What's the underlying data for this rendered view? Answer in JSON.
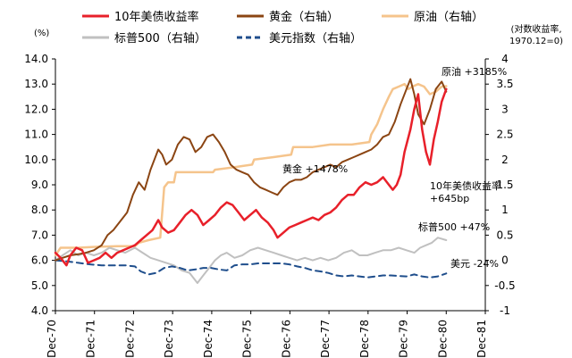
{
  "chart_data": {
    "type": "line",
    "x_range": [
      "1970-12",
      "1981-12"
    ],
    "x_ticks": [
      "Dec-70",
      "Dec-71",
      "Dec-72",
      "Dec-73",
      "Dec-74",
      "Dec-75",
      "Dec-76",
      "Dec-77",
      "Dec-78",
      "Dec-79",
      "Dec-80",
      "Dec-81"
    ],
    "y_left": {
      "unit": "(%)",
      "range": [
        4.0,
        14.0
      ],
      "ticks": [
        "4.0",
        "5.0",
        "6.0",
        "7.0",
        "8.0",
        "9.0",
        "10.0",
        "11.0",
        "12.0",
        "13.0",
        "14.0"
      ]
    },
    "y_right": {
      "unit_line1": "(对数收益率,",
      "unit_line2": "1970.12=0)",
      "range": [
        -1,
        4
      ],
      "ticks": [
        "-1",
        "-0.5",
        "0",
        "0.5",
        "1",
        "1.5",
        "2",
        "2.5",
        "3",
        "3.5",
        "4"
      ]
    },
    "legend": {
      "position": "top",
      "items": [
        {
          "label": "10年美债收益率",
          "color": "#e8202a",
          "style": "solid",
          "width": 2.5
        },
        {
          "label": "黄金（右轴）",
          "color": "#8b4513",
          "style": "solid",
          "width": 2
        },
        {
          "label": "原油（右轴）",
          "color": "#f5c48c",
          "style": "solid",
          "width": 2.5
        },
        {
          "label": "标普500（右轴）",
          "color": "#c0c0c0",
          "style": "solid",
          "width": 2
        },
        {
          "label": "美元指数（右轴）",
          "color": "#1f4e8c",
          "style": "dashed",
          "width": 2
        }
      ]
    },
    "annotations": [
      {
        "text": "原油 +3185%",
        "series": "原油（右轴）"
      },
      {
        "text": "黄金 +1478%",
        "series": "黄金（右轴）"
      },
      {
        "text": "10年美债收益率",
        "series": "10年美债收益率"
      },
      {
        "text": "+645bp",
        "series": "10年美债收益率"
      },
      {
        "text": "标普500 +47%",
        "series": "标普500（右轴）"
      },
      {
        "text": "美元 -24%",
        "series": "美元指数（右轴）"
      }
    ],
    "series": [
      {
        "name": "10年美债收益率",
        "axis": "left",
        "x": [
          1970.917,
          1971.05,
          1971.2,
          1971.3,
          1971.45,
          1971.6,
          1971.75,
          1971.9,
          1972.05,
          1972.2,
          1972.35,
          1972.5,
          1972.65,
          1972.8,
          1972.95,
          1973.1,
          1973.25,
          1973.4,
          1973.55,
          1973.65,
          1973.8,
          1973.95,
          1974.1,
          1974.25,
          1974.4,
          1974.55,
          1974.7,
          1974.85,
          1975.0,
          1975.15,
          1975.3,
          1975.45,
          1975.6,
          1975.75,
          1975.9,
          1976.05,
          1976.2,
          1976.35,
          1976.5,
          1976.6,
          1976.75,
          1976.9,
          1977.05,
          1977.2,
          1977.35,
          1977.5,
          1977.65,
          1977.8,
          1977.95,
          1978.1,
          1978.25,
          1978.4,
          1978.55,
          1978.7,
          1978.85,
          1979.0,
          1979.15,
          1979.3,
          1979.45,
          1979.55,
          1979.65,
          1979.75,
          1979.85,
          1979.9,
          1980.0,
          1980.1,
          1980.2,
          1980.3,
          1980.4,
          1980.5,
          1980.6,
          1980.7,
          1980.8,
          1980.917
        ],
        "values": [
          6.3,
          6.1,
          5.8,
          6.2,
          6.5,
          6.4,
          5.9,
          6.0,
          6.1,
          6.3,
          6.1,
          6.3,
          6.4,
          6.5,
          6.6,
          6.8,
          7.0,
          7.2,
          7.6,
          7.3,
          7.1,
          7.2,
          7.5,
          7.8,
          8.0,
          7.8,
          7.4,
          7.6,
          7.8,
          8.1,
          8.3,
          8.2,
          7.9,
          7.6,
          7.8,
          8.0,
          7.7,
          7.5,
          7.2,
          6.9,
          7.1,
          7.3,
          7.4,
          7.5,
          7.6,
          7.7,
          7.6,
          7.8,
          7.9,
          8.1,
          8.4,
          8.6,
          8.6,
          8.9,
          9.1,
          9.0,
          9.1,
          9.3,
          9.0,
          8.8,
          9.0,
          9.4,
          10.3,
          10.6,
          11.2,
          12.0,
          12.6,
          11.2,
          10.3,
          9.8,
          10.8,
          11.5,
          12.3,
          12.8
        ]
      },
      {
        "name": "黄金（右轴）",
        "axis": "right",
        "x": [
          1970.917,
          1971.1,
          1971.3,
          1971.5,
          1971.7,
          1971.9,
          1972.1,
          1972.25,
          1972.4,
          1972.5,
          1972.6,
          1972.75,
          1972.9,
          1973.05,
          1973.2,
          1973.35,
          1973.5,
          1973.55,
          1973.65,
          1973.75,
          1973.9,
          1974.05,
          1974.2,
          1974.35,
          1974.5,
          1974.65,
          1974.8,
          1974.95,
          1975.1,
          1975.25,
          1975.4,
          1975.55,
          1975.7,
          1975.85,
          1976.0,
          1976.15,
          1976.3,
          1976.45,
          1976.6,
          1976.75,
          1976.9,
          1977.05,
          1977.2,
          1977.35,
          1977.5,
          1977.65,
          1977.8,
          1977.95,
          1978.1,
          1978.25,
          1978.4,
          1978.55,
          1978.7,
          1978.85,
          1979.0,
          1979.15,
          1979.3,
          1979.45,
          1979.6,
          1979.75,
          1979.9,
          1980.0,
          1980.1,
          1980.2,
          1980.35,
          1980.5,
          1980.65,
          1980.8,
          1980.917
        ],
        "values": [
          0.0,
          0.05,
          0.1,
          0.12,
          0.15,
          0.2,
          0.3,
          0.5,
          0.6,
          0.7,
          0.8,
          0.95,
          1.3,
          1.55,
          1.4,
          1.8,
          2.1,
          2.2,
          2.1,
          1.9,
          2.0,
          2.3,
          2.45,
          2.4,
          2.15,
          2.25,
          2.45,
          2.5,
          2.35,
          2.15,
          1.9,
          1.8,
          1.75,
          1.7,
          1.55,
          1.45,
          1.4,
          1.35,
          1.3,
          1.45,
          1.55,
          1.6,
          1.6,
          1.65,
          1.75,
          1.8,
          1.85,
          1.9,
          1.85,
          1.95,
          2.0,
          2.05,
          2.1,
          2.15,
          2.2,
          2.3,
          2.45,
          2.5,
          2.75,
          3.1,
          3.4,
          3.6,
          3.3,
          2.9,
          2.7,
          3.0,
          3.4,
          3.55,
          3.35
        ]
      },
      {
        "name": "原油（右轴）",
        "axis": "right",
        "x": [
          1970.917,
          1971.05,
          1971.5,
          1972.0,
          1972.5,
          1972.95,
          1973.05,
          1973.3,
          1973.6,
          1973.7,
          1973.8,
          1973.95,
          1974.0,
          1974.3,
          1974.6,
          1974.95,
          1975.0,
          1975.5,
          1975.95,
          1976.0,
          1976.5,
          1976.95,
          1977.0,
          1977.5,
          1977.95,
          1978.0,
          1978.5,
          1978.95,
          1979.0,
          1979.15,
          1979.3,
          1979.45,
          1979.55,
          1979.7,
          1979.85,
          1979.95,
          1980.05,
          1980.2,
          1980.35,
          1980.5,
          1980.65,
          1980.8,
          1980.917
        ],
        "values": [
          0.1,
          0.25,
          0.25,
          0.27,
          0.28,
          0.28,
          0.35,
          0.4,
          0.45,
          1.45,
          1.55,
          1.55,
          1.75,
          1.75,
          1.75,
          1.75,
          1.8,
          1.85,
          1.9,
          2.0,
          2.05,
          2.1,
          2.25,
          2.25,
          2.3,
          2.3,
          2.3,
          2.35,
          2.5,
          2.7,
          3.0,
          3.25,
          3.4,
          3.45,
          3.5,
          3.4,
          3.45,
          3.5,
          3.45,
          3.3,
          3.35,
          3.45,
          3.46
        ]
      },
      {
        "name": "标普500（右轴）",
        "axis": "right",
        "x": [
          1970.917,
          1971.1,
          1971.3,
          1971.5,
          1971.7,
          1971.9,
          1972.1,
          1972.3,
          1972.5,
          1972.7,
          1972.95,
          1973.15,
          1973.35,
          1973.55,
          1973.75,
          1973.95,
          1974.15,
          1974.35,
          1974.55,
          1974.7,
          1974.85,
          1975.0,
          1975.15,
          1975.3,
          1975.5,
          1975.7,
          1975.9,
          1976.1,
          1976.3,
          1976.5,
          1976.7,
          1976.9,
          1977.1,
          1977.3,
          1977.5,
          1977.7,
          1977.9,
          1978.1,
          1978.3,
          1978.5,
          1978.7,
          1978.9,
          1979.1,
          1979.3,
          1979.5,
          1979.7,
          1979.9,
          1980.1,
          1980.25,
          1980.4,
          1980.55,
          1980.7,
          1980.917
        ],
        "values": [
          0.0,
          0.1,
          0.2,
          0.1,
          0.15,
          0.1,
          0.15,
          0.25,
          0.2,
          0.15,
          0.25,
          0.15,
          0.05,
          0.0,
          -0.05,
          -0.1,
          -0.2,
          -0.25,
          -0.45,
          -0.3,
          -0.15,
          0.0,
          0.1,
          0.15,
          0.05,
          0.1,
          0.2,
          0.25,
          0.2,
          0.15,
          0.1,
          0.05,
          0.0,
          0.05,
          0.0,
          0.05,
          0.0,
          0.05,
          0.15,
          0.2,
          0.1,
          0.1,
          0.15,
          0.2,
          0.2,
          0.25,
          0.2,
          0.15,
          0.25,
          0.3,
          0.35,
          0.45,
          0.4
        ]
      },
      {
        "name": "美元指数（右轴）",
        "axis": "right",
        "x": [
          1970.917,
          1971.2,
          1971.5,
          1971.8,
          1972.1,
          1972.4,
          1972.7,
          1972.95,
          1973.1,
          1973.3,
          1973.5,
          1973.7,
          1973.9,
          1974.1,
          1974.3,
          1974.5,
          1974.7,
          1974.9,
          1975.1,
          1975.3,
          1975.5,
          1975.7,
          1975.9,
          1976.1,
          1976.3,
          1976.5,
          1976.7,
          1976.9,
          1977.1,
          1977.3,
          1977.5,
          1977.7,
          1977.9,
          1978.1,
          1978.3,
          1978.5,
          1978.7,
          1978.9,
          1979.1,
          1979.3,
          1979.5,
          1979.7,
          1979.9,
          1980.1,
          1980.3,
          1980.5,
          1980.7,
          1980.917
        ],
        "values": [
          0.0,
          -0.02,
          -0.05,
          -0.08,
          -0.1,
          -0.1,
          -0.1,
          -0.12,
          -0.22,
          -0.28,
          -0.25,
          -0.15,
          -0.12,
          -0.15,
          -0.2,
          -0.18,
          -0.15,
          -0.15,
          -0.18,
          -0.2,
          -0.1,
          -0.08,
          -0.08,
          -0.06,
          -0.06,
          -0.06,
          -0.06,
          -0.08,
          -0.12,
          -0.15,
          -0.2,
          -0.22,
          -0.25,
          -0.3,
          -0.32,
          -0.3,
          -0.32,
          -0.34,
          -0.32,
          -0.3,
          -0.3,
          -0.31,
          -0.32,
          -0.28,
          -0.32,
          -0.34,
          -0.32,
          -0.26
        ]
      }
    ]
  }
}
